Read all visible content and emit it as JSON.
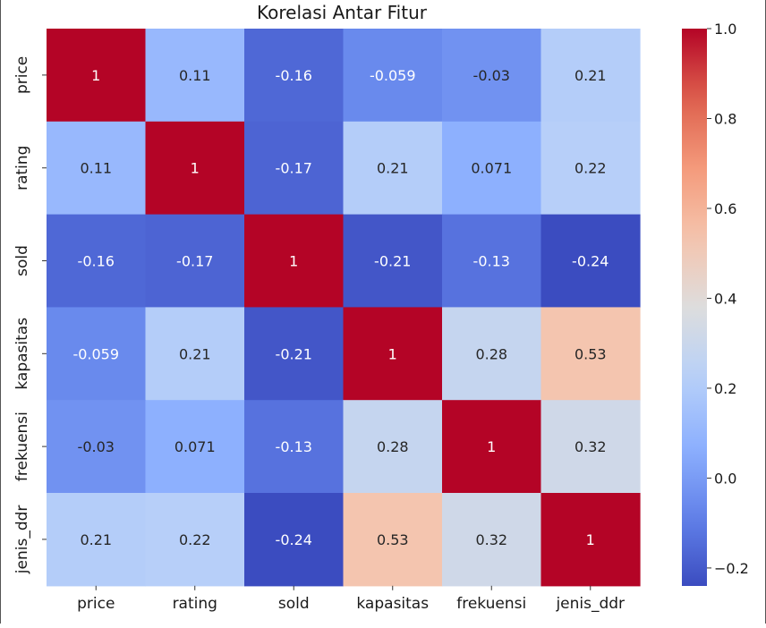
{
  "chart_data": {
    "type": "heatmap",
    "title": "Korelasi Antar Fitur",
    "labels": [
      "price",
      "rating",
      "sold",
      "kapasitas",
      "frekuensi",
      "jenis_ddr"
    ],
    "values": [
      [
        1,
        0.11,
        -0.16,
        -0.059,
        -0.03,
        0.21
      ],
      [
        0.11,
        1,
        -0.17,
        0.21,
        0.071,
        0.22
      ],
      [
        -0.16,
        -0.17,
        1,
        -0.21,
        -0.13,
        -0.24
      ],
      [
        -0.059,
        0.21,
        -0.21,
        1,
        0.28,
        0.53
      ],
      [
        -0.03,
        0.071,
        -0.13,
        0.28,
        1,
        0.32
      ],
      [
        0.21,
        0.22,
        -0.24,
        0.53,
        0.32,
        1
      ]
    ],
    "annotations": [
      [
        "1",
        "0.11",
        "-0.16",
        "-0.059",
        "-0.03",
        "0.21"
      ],
      [
        "0.11",
        "1",
        "-0.17",
        "0.21",
        "0.071",
        "0.22"
      ],
      [
        "-0.16",
        "-0.17",
        "1",
        "-0.21",
        "-0.13",
        "-0.24"
      ],
      [
        "-0.059",
        "0.21",
        "-0.21",
        "1",
        "0.28",
        "0.53"
      ],
      [
        "-0.03",
        "0.071",
        "-0.13",
        "0.28",
        "1",
        "0.32"
      ],
      [
        "0.21",
        "0.22",
        "-0.24",
        "0.53",
        "0.32",
        "1"
      ]
    ],
    "colormap": "coolwarm",
    "colorbar": {
      "min": -0.24,
      "max": 1.0,
      "ticks": [
        -0.2,
        0.0,
        0.2,
        0.4,
        0.6,
        0.8,
        1.0
      ],
      "tick_labels": [
        "−0.2",
        "0.0",
        "0.2",
        "0.4",
        "0.6",
        "0.8",
        "1.0"
      ]
    }
  }
}
